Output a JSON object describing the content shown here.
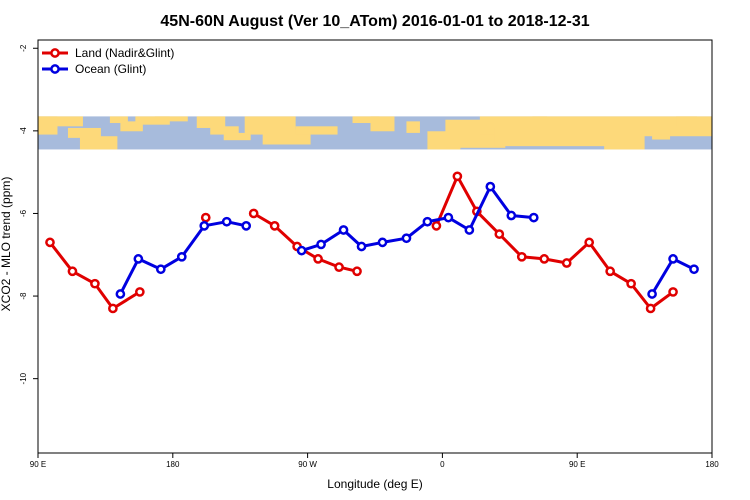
{
  "chart_data": {
    "type": "line",
    "title": "45N-60N August (Ver 10_ATom)   2016-01-01 to 2018-12-31",
    "xlabel": "Longitude (deg E)",
    "ylabel": "XCO2 - MLO trend (ppm)",
    "xlim": [
      90,
      540
    ],
    "ylim": [
      -11.8,
      -1.8
    ],
    "x_ticks": [
      {
        "value": 90,
        "label": "90 E"
      },
      {
        "value": 180,
        "label": "180"
      },
      {
        "value": 270,
        "label": "90 W"
      },
      {
        "value": 360,
        "label": "0"
      },
      {
        "value": 450,
        "label": "90 E"
      },
      {
        "value": 540,
        "label": "180"
      }
    ],
    "y_ticks": [
      {
        "value": -2,
        "label": "-2"
      },
      {
        "value": -4,
        "label": "-4"
      },
      {
        "value": -6,
        "label": "-6"
      },
      {
        "value": -8,
        "label": "-8"
      },
      {
        "value": -10,
        "label": "-10"
      }
    ],
    "legend_position": "top-left",
    "series": [
      {
        "name": "Land (Nadir&Glint)",
        "color": "#e00000",
        "segments": [
          [
            [
              98,
              -6.7
            ],
            [
              113,
              -7.4
            ],
            [
              128,
              -7.7
            ],
            [
              140,
              -8.3
            ],
            [
              158,
              -7.9
            ]
          ],
          [
            [
              202,
              -6.1
            ]
          ],
          [
            [
              234,
              -6.0
            ],
            [
              248,
              -6.3
            ],
            [
              263,
              -6.8
            ],
            [
              277,
              -7.1
            ],
            [
              291,
              -7.3
            ],
            [
              303,
              -7.4
            ]
          ],
          [
            [
              356,
              -6.3
            ],
            [
              370,
              -5.1
            ],
            [
              383,
              -5.95
            ],
            [
              398,
              -6.5
            ],
            [
              413,
              -7.05
            ],
            [
              428,
              -7.1
            ],
            [
              443,
              -7.2
            ],
            [
              458,
              -6.7
            ],
            [
              472,
              -7.4
            ],
            [
              486,
              -7.7
            ],
            [
              499,
              -8.3
            ],
            [
              514,
              -7.9
            ]
          ]
        ]
      },
      {
        "name": "Ocean (Glint)",
        "color": "#0000e0",
        "segments": [
          [
            [
              145,
              -7.95
            ],
            [
              157,
              -7.1
            ],
            [
              172,
              -7.35
            ],
            [
              186,
              -7.05
            ],
            [
              201,
              -6.3
            ],
            [
              216,
              -6.2
            ],
            [
              229,
              -6.3
            ]
          ],
          [
            [
              266,
              -6.9
            ],
            [
              279,
              -6.75
            ],
            [
              294,
              -6.4
            ],
            [
              306,
              -6.8
            ],
            [
              320,
              -6.7
            ],
            [
              336,
              -6.6
            ],
            [
              350,
              -6.2
            ],
            [
              364,
              -6.1
            ],
            [
              378,
              -6.4
            ],
            [
              392,
              -5.35
            ],
            [
              406,
              -6.05
            ],
            [
              421,
              -6.1
            ]
          ],
          [
            [
              500,
              -7.95
            ],
            [
              514,
              -7.1
            ],
            [
              528,
              -7.35
            ]
          ]
        ]
      }
    ],
    "map_band": {
      "y_from": -4.45,
      "y_to": -3.65,
      "ocean_color": "#a7bbdc",
      "land_color": "#fdd97a"
    }
  }
}
